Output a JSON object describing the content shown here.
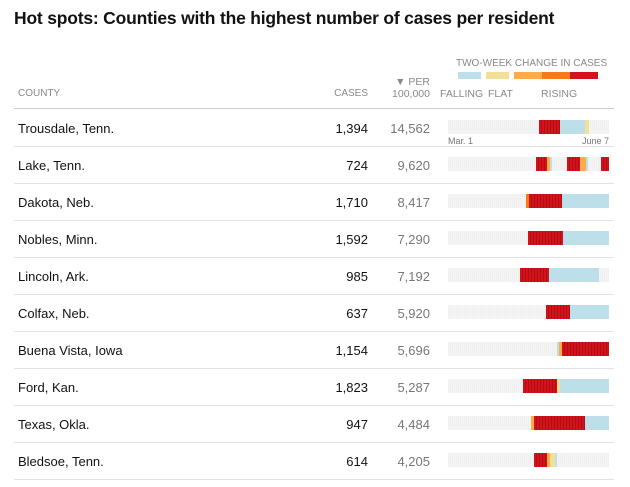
{
  "title": "Hot spots: Counties with the highest number of cases per resident",
  "columns": {
    "county": "COUNTY",
    "cases": "CASES",
    "per_arrow": "▼",
    "per": "PER",
    "per2": "100,000"
  },
  "legend": {
    "title": "TWO-WEEK CHANGE IN CASES",
    "falling": "FALLING",
    "flat": "FLAT",
    "rising": "RISING"
  },
  "colors": {
    "falling": "#bcdfe9",
    "flat": "#f2df9a",
    "rising1": "#fdac47",
    "rising2": "#f97a17",
    "rising3": "#d3131b"
  },
  "axis": {
    "start": "Mar. 1",
    "end": "June 7"
  },
  "chart_data": {
    "type": "table",
    "days_total": 99,
    "rows": [
      {
        "county": "Trousdale, Tenn.",
        "cases": "1,394",
        "per": "14,562",
        "segments": [
          [
            56,
            69,
            "rising3"
          ],
          [
            69,
            84,
            "falling"
          ],
          [
            84,
            87,
            "flat"
          ]
        ]
      },
      {
        "county": "Lake, Tenn.",
        "cases": "724",
        "per": "9,620",
        "segments": [
          [
            54,
            61,
            "rising3"
          ],
          [
            61,
            63,
            "rising1"
          ],
          [
            63,
            64,
            "falling"
          ],
          [
            73,
            81,
            "rising3"
          ],
          [
            81,
            85,
            "rising1"
          ],
          [
            85,
            86,
            "falling"
          ],
          [
            94,
            99,
            "rising3"
          ]
        ]
      },
      {
        "county": "Dakota, Neb.",
        "cases": "1,710",
        "per": "8,417",
        "segments": [
          [
            48,
            50,
            "rising2"
          ],
          [
            50,
            70,
            "rising3"
          ],
          [
            70,
            99,
            "falling"
          ]
        ]
      },
      {
        "county": "Nobles, Minn.",
        "cases": "1,592",
        "per": "7,290",
        "segments": [
          [
            49,
            71,
            "rising3"
          ],
          [
            71,
            99,
            "falling"
          ]
        ]
      },
      {
        "county": "Lincoln, Ark.",
        "cases": "985",
        "per": "7,192",
        "segments": [
          [
            44,
            62,
            "rising3"
          ],
          [
            62,
            93,
            "falling"
          ]
        ]
      },
      {
        "county": "Colfax, Neb.",
        "cases": "637",
        "per": "5,920",
        "segments": [
          [
            60,
            75,
            "rising3"
          ],
          [
            75,
            99,
            "falling"
          ]
        ]
      },
      {
        "county": "Buena Vista, Iowa",
        "cases": "1,154",
        "per": "5,696",
        "segments": [
          [
            67,
            68,
            "falling"
          ],
          [
            68,
            70,
            "rising1"
          ],
          [
            70,
            99,
            "rising3"
          ]
        ]
      },
      {
        "county": "Ford, Kan.",
        "cases": "1,823",
        "per": "5,287",
        "segments": [
          [
            46,
            67,
            "rising3"
          ],
          [
            67,
            69,
            "flat"
          ],
          [
            69,
            99,
            "falling"
          ]
        ]
      },
      {
        "county": "Texas, Okla.",
        "cases": "947",
        "per": "4,484",
        "segments": [
          [
            51,
            53,
            "rising1"
          ],
          [
            53,
            84,
            "rising3"
          ],
          [
            84,
            99,
            "falling"
          ]
        ]
      },
      {
        "county": "Bledsoe, Tenn.",
        "cases": "614",
        "per": "4,205",
        "segments": [
          [
            53,
            61,
            "rising3"
          ],
          [
            61,
            63,
            "rising1"
          ],
          [
            63,
            66,
            "flat"
          ],
          [
            66,
            67,
            "falling"
          ]
        ]
      }
    ]
  }
}
